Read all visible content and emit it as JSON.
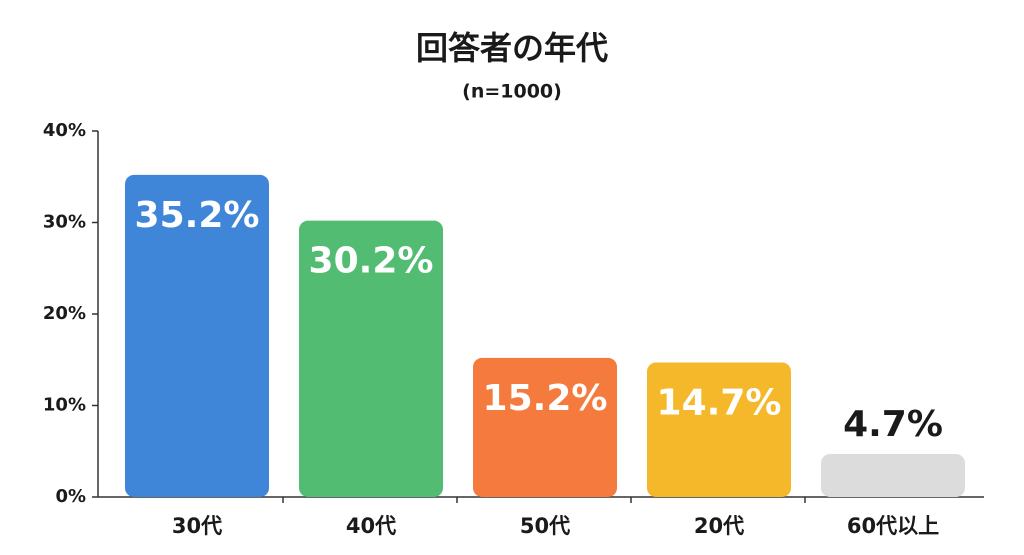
{
  "chart_data": {
    "type": "bar",
    "title": "回答者の年代",
    "subtitle": "(n=1000)",
    "categories": [
      "30代",
      "40代",
      "50代",
      "20代",
      "60代以上"
    ],
    "values": [
      35.2,
      30.2,
      15.2,
      14.7,
      4.7
    ],
    "value_labels": [
      "35.2%",
      "30.2%",
      "15.2%",
      "14.7%",
      "4.7%"
    ],
    "colors": [
      "#3f86d9",
      "#52bd72",
      "#f57a3d",
      "#f5b82a",
      "#dcdcdc"
    ],
    "ylim": [
      0,
      40
    ],
    "yticks": [
      {
        "value": 0,
        "label": "0%"
      },
      {
        "value": 10,
        "label": "10%"
      },
      {
        "value": 20,
        "label": "20%"
      },
      {
        "value": 30,
        "label": "30%"
      },
      {
        "value": 40,
        "label": "40%"
      }
    ],
    "grid": false
  }
}
